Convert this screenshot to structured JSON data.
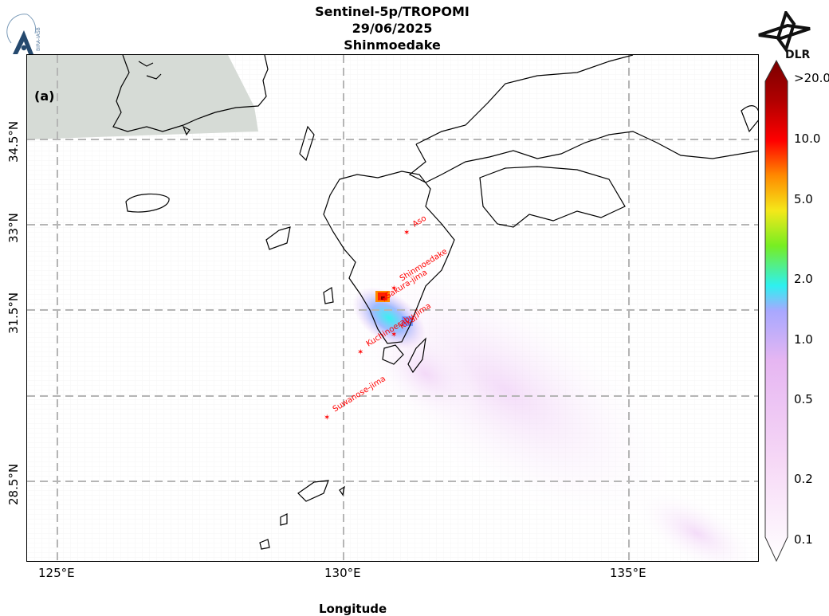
{
  "header": {
    "title_line1": "Sentinel-5p/TROPOMI",
    "title_line2": "29/06/2025",
    "title_line3": "Shinmoedake"
  },
  "logos": {
    "left_org": "BIRA-IASB",
    "right_org": "DLR"
  },
  "map": {
    "panel_label": "(a)",
    "lat_labels": [
      "34.5°N",
      "33°N",
      "31.5°N",
      "28.5°N"
    ],
    "lon_labels": [
      "125°E",
      "130°E",
      "135°E"
    ],
    "x_axis_title": "Longitude",
    "volcanoes": [
      "Aso",
      "Shinmoedake",
      "Sakura-jima",
      "Kikai",
      "Kuchinoerabu-jima",
      "Suwanose-jima"
    ],
    "marker_color": "#ff0000",
    "no_data_color": "#d6dbd6"
  },
  "colorbar": {
    "tick_labels": [
      ">20.0",
      "10.0",
      "5.0",
      "2.0",
      "1.0",
      "0.5",
      "0.2",
      "0.1"
    ],
    "colors": [
      "#ffffff",
      "#f6d8f6",
      "#e6b6f2",
      "#a8a8ff",
      "#2ef0f0",
      "#77ee22",
      "#f4e81a",
      "#ff8a00",
      "#ff0000",
      "#b00000",
      "#7a0000"
    ]
  }
}
